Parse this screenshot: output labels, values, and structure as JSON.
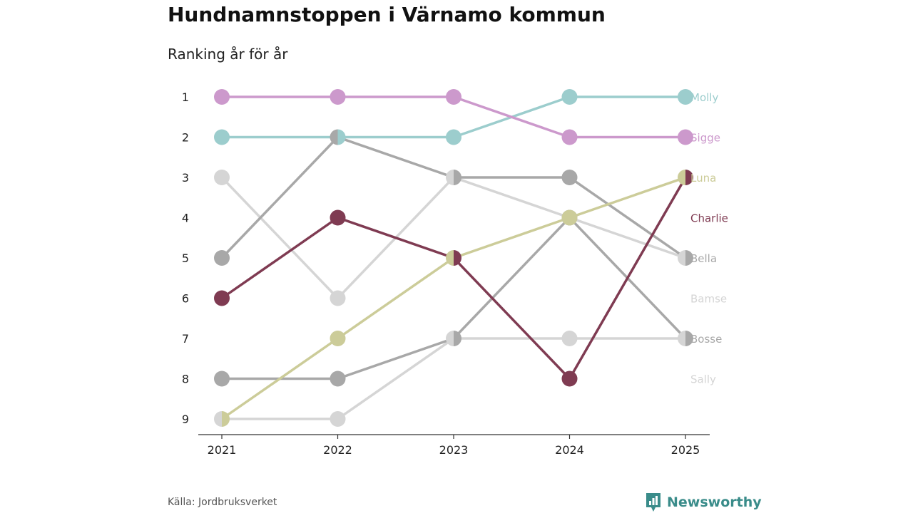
{
  "title": "Hundnamnstoppen i Värnamo kommun",
  "subtitle": "Ranking år för år",
  "source": "Källa: Jordbruksverket",
  "brand": {
    "name": "Newsworthy",
    "icon": "bar-chart-icon",
    "color": "#3a8c8a"
  },
  "chart_data": {
    "type": "line",
    "x": [
      "2021",
      "2022",
      "2023",
      "2024",
      "2025"
    ],
    "y_ticks": [
      "1",
      "2",
      "3",
      "4",
      "5",
      "6",
      "7",
      "8",
      "9"
    ],
    "ylim": [
      1,
      9
    ],
    "y_reversed": true,
    "xlabel": "",
    "ylabel": "",
    "grid": false,
    "series": [
      {
        "name": "Sally",
        "color": "#d5d5d5",
        "ranks": [
          3,
          6,
          3,
          4,
          5
        ],
        "label_rank": 8
      },
      {
        "name": "Bamse",
        "color": "#d5d5d5",
        "ranks": [
          9,
          9,
          7,
          7,
          7
        ],
        "label_rank": 6
      },
      {
        "name": "Bosse",
        "color": "#a8a8a8",
        "ranks": [
          8,
          8,
          7,
          4,
          7
        ],
        "label_rank": 7
      },
      {
        "name": "Bella",
        "color": "#a8a8a8",
        "ranks": [
          5,
          2,
          3,
          3,
          5
        ],
        "label_rank": 5
      },
      {
        "name": "Luna",
        "color": "#cccc99",
        "ranks": [
          9,
          7,
          5,
          4,
          3
        ],
        "label_rank": 3
      },
      {
        "name": "Charlie",
        "color": "#7f3b52",
        "ranks": [
          6,
          4,
          5,
          8,
          3
        ],
        "label_rank": 4
      },
      {
        "name": "Molly",
        "color": "#9ccdcd",
        "ranks": [
          2,
          2,
          2,
          1,
          1
        ],
        "label_rank": 1
      },
      {
        "name": "Sigge",
        "color": "#cc99cc",
        "ranks": [
          1,
          1,
          1,
          2,
          2
        ],
        "label_rank": 2
      }
    ]
  }
}
